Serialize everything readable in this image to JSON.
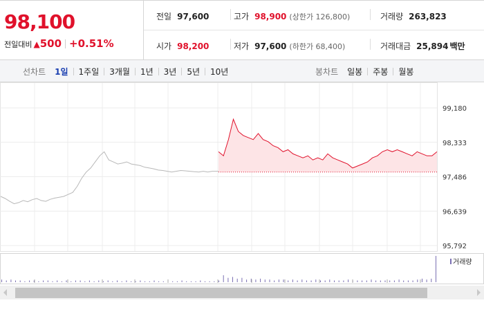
{
  "quote": {
    "current_price": "98,100",
    "change_label": "전일대비",
    "change_arrow": "▲",
    "change_amount": "500",
    "change_percent": "+0.51%",
    "stats": {
      "prev_close": {
        "label": "전일",
        "value": "97,600"
      },
      "high": {
        "label": "고가",
        "value": "98,900",
        "note": "(상한가 126,800)"
      },
      "volume": {
        "label": "거래량",
        "value": "263,823"
      },
      "open": {
        "label": "시가",
        "value": "98,200"
      },
      "low": {
        "label": "저가",
        "value": "97,600",
        "note": "(하한가 68,400)"
      },
      "turnover": {
        "label": "거래대금",
        "value": "25,894",
        "unit": "백만"
      }
    }
  },
  "toolbar": {
    "line_chart_label": "선차트",
    "line_periods": [
      "1일",
      "1주일",
      "3개월",
      "1년",
      "3년",
      "5년",
      "10년"
    ],
    "active_period": "1일",
    "candle_chart_label": "봉차트",
    "candle_periods": [
      "일봉",
      "주봉",
      "월봉"
    ]
  },
  "colors": {
    "up_red": "#e0112b",
    "prev_day_gray": "#b8b8b8",
    "area_fill": "#fde4e6",
    "volume_purple": "#7a6fb3",
    "active_blue": "#1a3fb0"
  },
  "chart_data": {
    "type": "line",
    "y_ticks": [
      "99,180",
      "98,333",
      "97,486",
      "96,639",
      "95,792"
    ],
    "ylim": [
      95792,
      99180
    ],
    "reference_line": 97600,
    "series": [
      {
        "values": [
          97000,
          96950,
          96880,
          96820,
          96850,
          96900,
          96870,
          96920,
          96950,
          96900,
          96880,
          96930,
          96960,
          96980,
          97000,
          97050,
          97100,
          97250,
          97450,
          97600,
          97700,
          97850,
          98000,
          98100,
          97900,
          97850,
          97800,
          97820,
          97850,
          97800,
          97780,
          97760,
          97720,
          97700,
          97680,
          97650,
          97640,
          97620,
          97600,
          97620,
          97640,
          97630,
          97620,
          97610,
          97600,
          97620,
          97600,
          97620
        ]
      },
      {
        "values": [
          98100,
          98000,
          98400,
          98900,
          98600,
          98500,
          98450,
          98400,
          98550,
          98400,
          98350,
          98250,
          98200,
          98100,
          98150,
          98050,
          98000,
          97950,
          98000,
          97900,
          97950,
          97900,
          98050,
          97950,
          97900,
          97850,
          97800,
          97700,
          97750,
          97800,
          97850,
          97950,
          98000,
          98100,
          98150,
          98100,
          98150,
          98100,
          98050,
          98000,
          98100,
          98050,
          98000,
          98000,
          98100
        ]
      }
    ],
    "volume": {
      "label": "거래량",
      "values": [
        3,
        2,
        3,
        2,
        2,
        1,
        2,
        2,
        1,
        2,
        2,
        1,
        2,
        1,
        2,
        1,
        2,
        2,
        1,
        2,
        1,
        2,
        1,
        2,
        1,
        2,
        1,
        2,
        1,
        1,
        2,
        1,
        1,
        2,
        1,
        1,
        2,
        1,
        1,
        2,
        1,
        1,
        1,
        2,
        1,
        1,
        1,
        2,
        8,
        5,
        6,
        4,
        5,
        3,
        4,
        3,
        4,
        3,
        3,
        2,
        3,
        3,
        2,
        3,
        2,
        3,
        2,
        2,
        3,
        2,
        2,
        3,
        2,
        2,
        2,
        3,
        2,
        2,
        2,
        2,
        3,
        2,
        2,
        2,
        2,
        2,
        3,
        2,
        2,
        2,
        3,
        4,
        3,
        4,
        30
      ]
    }
  }
}
